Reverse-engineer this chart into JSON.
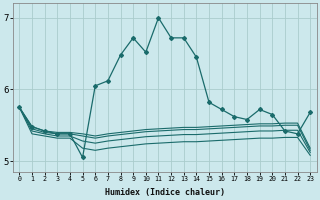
{
  "xlabel": "Humidex (Indice chaleur)",
  "bg_color": "#cce8ec",
  "grid_color": "#aacccc",
  "line_color": "#1a6b6b",
  "x_ticks": [
    0,
    1,
    2,
    3,
    4,
    5,
    6,
    7,
    8,
    9,
    10,
    11,
    12,
    13,
    14,
    15,
    16,
    17,
    18,
    19,
    20,
    21,
    22,
    23
  ],
  "ylim": [
    4.85,
    7.2
  ],
  "y_ticks": [
    5,
    6,
    7
  ],
  "main_y": [
    5.75,
    5.48,
    5.42,
    5.38,
    5.38,
    5.05,
    6.05,
    6.12,
    6.48,
    6.72,
    6.52,
    7.0,
    6.72,
    6.72,
    6.45,
    5.82,
    5.72,
    5.62,
    5.58,
    5.72,
    5.65,
    5.42,
    5.38,
    5.68
  ],
  "flat_lines": [
    [
      5.75,
      5.48,
      5.42,
      5.4,
      5.4,
      5.38,
      5.35,
      5.38,
      5.4,
      5.42,
      5.44,
      5.45,
      5.46,
      5.47,
      5.47,
      5.48,
      5.49,
      5.5,
      5.51,
      5.52,
      5.52,
      5.53,
      5.53,
      5.18
    ],
    [
      5.75,
      5.45,
      5.4,
      5.38,
      5.38,
      5.35,
      5.32,
      5.35,
      5.37,
      5.39,
      5.41,
      5.42,
      5.43,
      5.44,
      5.44,
      5.45,
      5.46,
      5.47,
      5.48,
      5.49,
      5.49,
      5.5,
      5.5,
      5.15
    ],
    [
      5.75,
      5.42,
      5.38,
      5.35,
      5.35,
      5.28,
      5.25,
      5.28,
      5.3,
      5.32,
      5.34,
      5.35,
      5.36,
      5.37,
      5.37,
      5.38,
      5.39,
      5.4,
      5.41,
      5.42,
      5.42,
      5.43,
      5.43,
      5.12
    ],
    [
      5.75,
      5.38,
      5.35,
      5.32,
      5.32,
      5.18,
      5.15,
      5.18,
      5.2,
      5.22,
      5.24,
      5.25,
      5.26,
      5.27,
      5.27,
      5.28,
      5.29,
      5.3,
      5.31,
      5.32,
      5.32,
      5.33,
      5.33,
      5.08
    ]
  ]
}
